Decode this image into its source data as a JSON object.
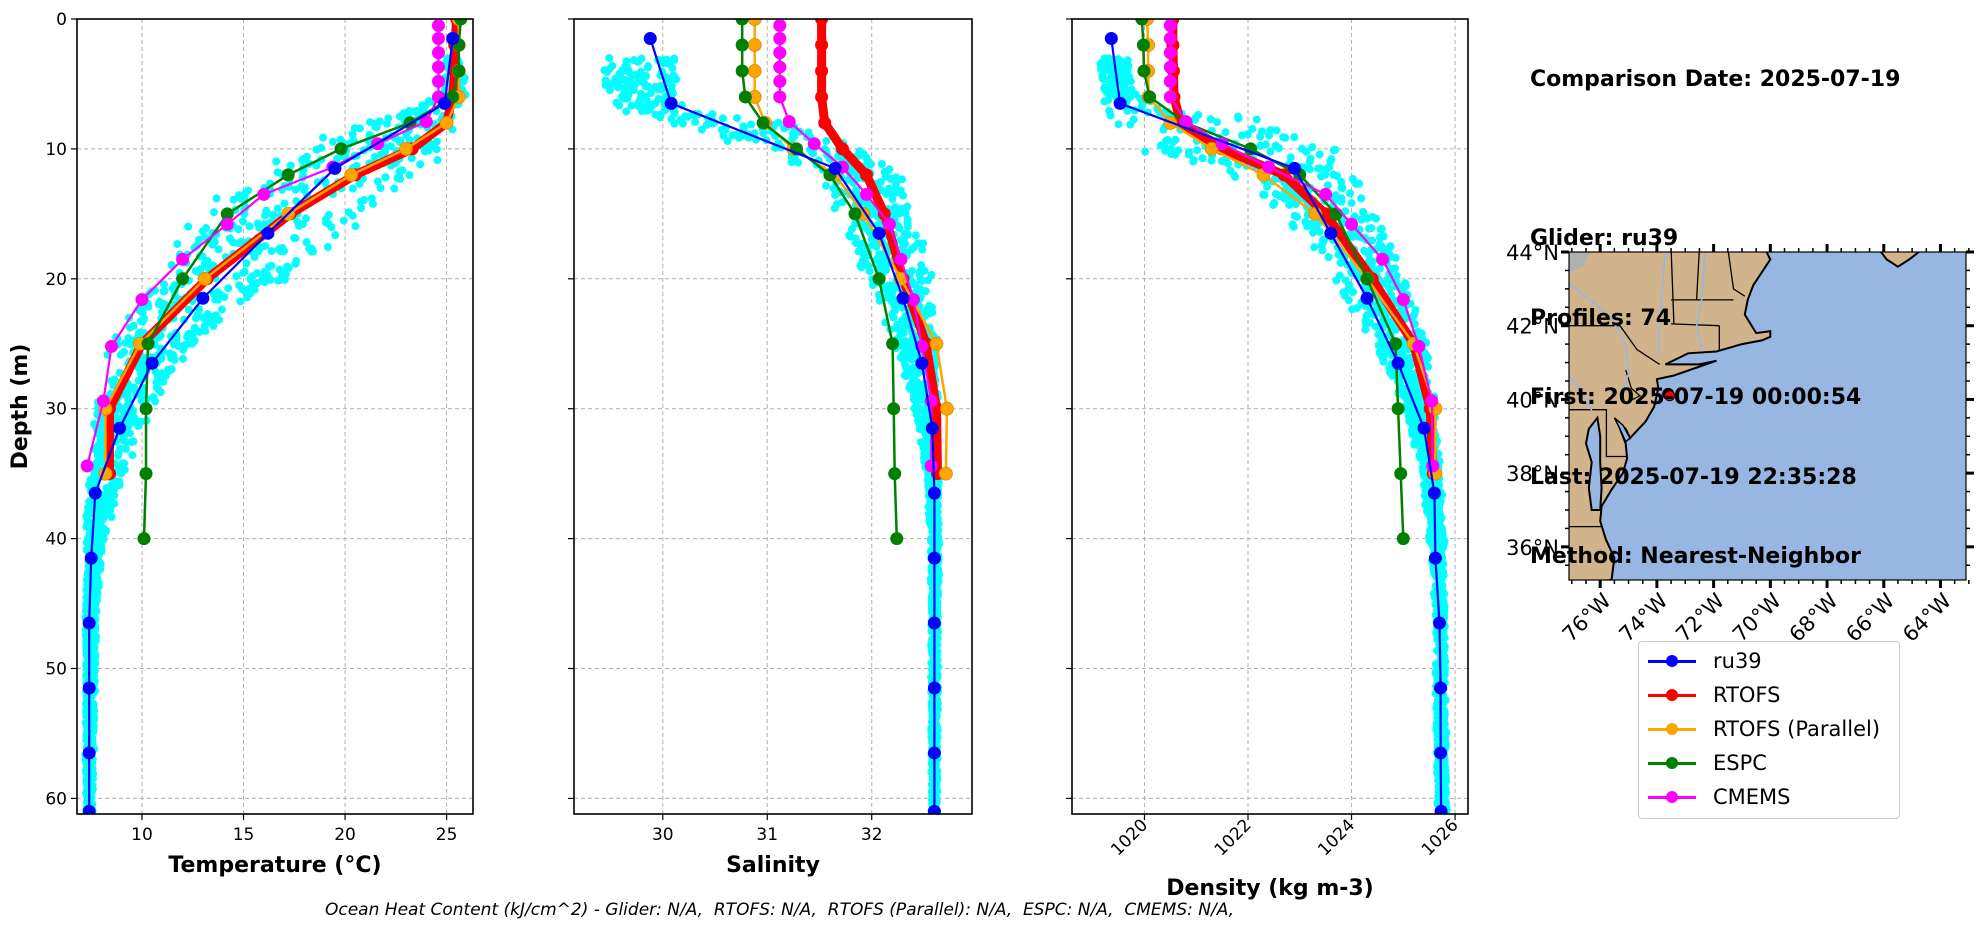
{
  "info": {
    "comparison_date": "Comparison Date: 2025-07-19",
    "glider": "Glider: ru39",
    "profiles": "Profiles: 74",
    "first": "First: 2025-07-19 00:00:54",
    "last": "Last: 2025-07-19 22:35:28",
    "method": "Method: Nearest-Neighbor"
  },
  "ohc_text": "Ocean Heat Content (kJ/cm^2) - Glider: N/A,  RTOFS: N/A,  RTOFS (Parallel): N/A,  ESPC: N/A,  CMEMS: N/A,",
  "legend": [
    {
      "name": "ru39",
      "color": "#0000ff"
    },
    {
      "name": "RTOFS",
      "color": "#ff0000"
    },
    {
      "name": "RTOFS (Parallel)",
      "color": "#ffa500"
    },
    {
      "name": "ESPC",
      "color": "#008000"
    },
    {
      "name": "CMEMS",
      "color": "#ff00ff"
    }
  ],
  "colors": {
    "glider_scatter": "#00ffff",
    "land": "#d2b48c",
    "ocean": "#97b6e1",
    "grid": "#b0b0b0"
  },
  "chart_data": [
    {
      "type": "line",
      "id": "temperature",
      "xlabel": "Temperature (°C)",
      "ylabel": "Depth (m)",
      "xlim": [
        6.8,
        26.3
      ],
      "ylim": [
        61.2,
        0
      ],
      "xticks": [
        10,
        15,
        20,
        25
      ],
      "yticks": [
        0,
        10,
        20,
        30,
        40,
        50,
        60
      ],
      "grid": true,
      "scatter_band": {
        "depth": [
          3,
          6,
          8,
          10,
          12,
          15,
          20,
          25,
          30,
          35,
          40,
          45,
          61
        ],
        "lo": [
          24.9,
          24.7,
          20.5,
          17.5,
          14.5,
          12.5,
          10.0,
          8.3,
          7.6,
          7.3,
          7.2,
          7.2,
          7.2
        ],
        "hi": [
          25.9,
          26.0,
          25.9,
          25.5,
          24.0,
          21.5,
          17.5,
          13.0,
          10.5,
          9.2,
          8.2,
          7.8,
          7.6
        ]
      },
      "series": [
        {
          "name": "ru39",
          "depth": [
            1.5,
            6.5,
            11.5,
            16.5,
            21.5,
            26.5,
            31.5,
            36.5,
            41.5,
            46.5,
            51.5,
            56.5,
            61
          ],
          "values": [
            25.3,
            24.9,
            19.5,
            16.2,
            13.0,
            10.5,
            8.9,
            7.7,
            7.5,
            7.4,
            7.4,
            7.4,
            7.4
          ]
        },
        {
          "name": "RTOFS",
          "depth": [
            0,
            2,
            4,
            6,
            8,
            10,
            12,
            15,
            20,
            25,
            30,
            35
          ],
          "values": [
            25.5,
            25.4,
            25.4,
            25.3,
            25.0,
            23.3,
            20.5,
            17.3,
            13.2,
            10.0,
            8.4,
            8.4
          ]
        },
        {
          "name": "RTOFS (Parallel)",
          "depth": [
            0,
            2,
            4,
            6,
            8,
            10,
            12,
            15,
            20,
            25,
            30,
            35
          ],
          "values": [
            25.6,
            25.6,
            25.6,
            25.6,
            25.0,
            23.0,
            20.3,
            17.2,
            13.1,
            9.9,
            8.2,
            8.2
          ]
        },
        {
          "name": "ESPC",
          "depth": [
            0,
            2,
            4,
            6,
            8,
            10,
            12,
            15,
            20,
            25,
            30,
            35,
            40
          ],
          "values": [
            25.7,
            25.6,
            25.6,
            25.3,
            23.2,
            19.8,
            17.2,
            14.2,
            12.0,
            10.3,
            10.2,
            10.2,
            10.1
          ]
        },
        {
          "name": "CMEMS",
          "depth": [
            0.5,
            1.5,
            2.6,
            3.7,
            4.8,
            6.0,
            7.9,
            9.6,
            11.4,
            13.5,
            15.8,
            18.5,
            21.6,
            25.2,
            29.4,
            34.4
          ],
          "values": [
            24.6,
            24.6,
            24.6,
            24.6,
            24.6,
            24.6,
            24.0,
            21.6,
            19.4,
            16.0,
            14.2,
            12.0,
            10.0,
            8.5,
            8.1,
            7.3
          ]
        }
      ]
    },
    {
      "type": "line",
      "id": "salinity",
      "xlabel": "Salinity",
      "ylabel": "",
      "xlim": [
        29.15,
        32.96
      ],
      "ylim": [
        61.2,
        0
      ],
      "xticks": [
        30,
        31,
        32
      ],
      "yticks": [
        0,
        10,
        20,
        30,
        40,
        50,
        60
      ],
      "grid": true,
      "scatter_band": {
        "depth": [
          3,
          5,
          7,
          8,
          10,
          12,
          15,
          20,
          25,
          30,
          35,
          40,
          61
        ],
        "lo": [
          29.4,
          29.4,
          29.5,
          30.0,
          30.8,
          31.5,
          31.65,
          31.9,
          32.2,
          32.4,
          32.52,
          32.56,
          32.57
        ],
        "hi": [
          30.2,
          30.2,
          30.2,
          31.3,
          32.0,
          32.3,
          32.45,
          32.6,
          32.65,
          32.65,
          32.65,
          32.65,
          32.63
        ]
      },
      "series": [
        {
          "name": "ru39",
          "depth": [
            1.5,
            6.5,
            11.5,
            16.5,
            21.5,
            26.5,
            31.5,
            36.5,
            41.5,
            46.5,
            51.5,
            56.5,
            61
          ],
          "values": [
            29.88,
            30.08,
            31.65,
            32.07,
            32.3,
            32.48,
            32.58,
            32.6,
            32.6,
            32.6,
            32.6,
            32.6,
            32.6
          ]
        },
        {
          "name": "RTOFS",
          "depth": [
            0,
            2,
            4,
            6,
            8,
            10,
            12,
            15,
            20,
            25,
            30,
            35
          ],
          "values": [
            31.52,
            31.52,
            31.52,
            31.52,
            31.55,
            31.72,
            31.95,
            32.12,
            32.3,
            32.52,
            32.62,
            32.63
          ]
        },
        {
          "name": "RTOFS (Parallel)",
          "depth": [
            0,
            2,
            4,
            6,
            8,
            10,
            12,
            15,
            20,
            25,
            30,
            35
          ],
          "values": [
            30.88,
            30.88,
            30.88,
            30.88,
            30.98,
            31.25,
            31.65,
            31.92,
            32.28,
            32.62,
            32.72,
            32.71
          ]
        },
        {
          "name": "ESPC",
          "depth": [
            0,
            2,
            4,
            6,
            8,
            10,
            12,
            15,
            20,
            25,
            30,
            35,
            40
          ],
          "values": [
            30.76,
            30.76,
            30.76,
            30.79,
            30.96,
            31.28,
            31.6,
            31.84,
            32.07,
            32.2,
            32.21,
            32.22,
            32.24
          ]
        },
        {
          "name": "CMEMS",
          "depth": [
            0.5,
            1.5,
            2.6,
            3.7,
            4.8,
            6.0,
            7.9,
            9.6,
            11.4,
            13.5,
            15.8,
            18.5,
            21.6,
            25.2,
            29.4,
            34.4
          ],
          "values": [
            31.12,
            31.12,
            31.12,
            31.12,
            31.12,
            31.12,
            31.21,
            31.45,
            31.72,
            31.95,
            32.17,
            32.28,
            32.4,
            32.48,
            32.57,
            32.57
          ]
        }
      ]
    },
    {
      "type": "line",
      "id": "density",
      "xlabel": "Density (kg m-3)",
      "ylabel": "",
      "xlim": [
        1018.6,
        1026.25
      ],
      "ylim": [
        61.2,
        0
      ],
      "xticks": [
        1020,
        1022,
        1024,
        1026
      ],
      "yticks": [
        0,
        10,
        20,
        30,
        40,
        50,
        60
      ],
      "grid": true,
      "scatter_band": {
        "depth": [
          3,
          6,
          8,
          10,
          12,
          15,
          20,
          25,
          30,
          35,
          40,
          45,
          61
        ],
        "lo": [
          1019.1,
          1019.1,
          1019.3,
          1019.6,
          1021.5,
          1022.6,
          1023.6,
          1024.4,
          1025.0,
          1025.35,
          1025.5,
          1025.6,
          1025.65
        ],
        "hi": [
          1019.7,
          1019.9,
          1022.6,
          1023.8,
          1024.3,
          1024.6,
          1025.1,
          1025.5,
          1025.65,
          1025.75,
          1025.8,
          1025.82,
          1025.85
        ]
      },
      "series": [
        {
          "name": "ru39",
          "depth": [
            1.5,
            6.5,
            11.5,
            16.5,
            21.5,
            26.5,
            31.5,
            36.5,
            41.5,
            46.5,
            51.5,
            56.5,
            61
          ],
          "values": [
            1019.36,
            1019.53,
            1022.9,
            1023.6,
            1024.3,
            1024.9,
            1025.4,
            1025.6,
            1025.62,
            1025.7,
            1025.72,
            1025.72,
            1025.73
          ]
        },
        {
          "name": "RTOFS",
          "depth": [
            0,
            2,
            4,
            6,
            8,
            10,
            12,
            15,
            20,
            25,
            30,
            35
          ],
          "values": [
            1020.55,
            1020.55,
            1020.56,
            1020.57,
            1020.7,
            1021.5,
            1022.7,
            1023.5,
            1024.4,
            1025.2,
            1025.52,
            1025.58
          ]
        },
        {
          "name": "RTOFS (Parallel)",
          "depth": [
            0,
            2,
            4,
            6,
            8,
            10,
            12,
            15,
            20,
            25,
            30,
            35
          ],
          "values": [
            1020.05,
            1020.07,
            1020.07,
            1020.08,
            1020.5,
            1021.3,
            1022.3,
            1023.3,
            1024.3,
            1025.2,
            1025.62,
            1025.62
          ]
        },
        {
          "name": "ESPC",
          "depth": [
            0,
            2,
            4,
            6,
            8,
            10,
            12,
            15,
            20,
            25,
            30,
            35,
            40
          ],
          "values": [
            1019.95,
            1019.98,
            1019.99,
            1020.1,
            1020.8,
            1022.05,
            1023.0,
            1023.7,
            1024.3,
            1024.85,
            1024.9,
            1024.95,
            1025.0
          ]
        },
        {
          "name": "CMEMS",
          "depth": [
            0.5,
            1.5,
            2.6,
            3.7,
            4.8,
            6.0,
            7.9,
            9.6,
            11.4,
            13.5,
            15.8,
            18.5,
            21.6,
            25.2,
            29.4,
            34.4
          ],
          "values": [
            1020.5,
            1020.5,
            1020.5,
            1020.5,
            1020.5,
            1020.5,
            1020.8,
            1021.5,
            1022.4,
            1023.5,
            1024.0,
            1024.6,
            1025.0,
            1025.3,
            1025.55,
            1025.57
          ]
        }
      ]
    },
    {
      "type": "map",
      "id": "location-map",
      "lon_range": [
        -77.1,
        -63.1
      ],
      "lat_range": [
        35.1,
        44.0
      ],
      "lon_ticks": [
        "76°W",
        "74°W",
        "72°W",
        "70°W",
        "68°W",
        "66°W",
        "64°W"
      ],
      "lon_tick_values": [
        -76,
        -74,
        -72,
        -70,
        -68,
        -66,
        -64
      ],
      "lat_ticks": [
        "44°N",
        "42°N",
        "40°N",
        "38°N",
        "36°N"
      ],
      "lat_tick_values": [
        44,
        42,
        40,
        38,
        36
      ],
      "glider_track": {
        "lon": -73.6,
        "lat": 40.15
      },
      "model_point": {
        "lon": -73.55,
        "lat": 40.1
      }
    }
  ]
}
